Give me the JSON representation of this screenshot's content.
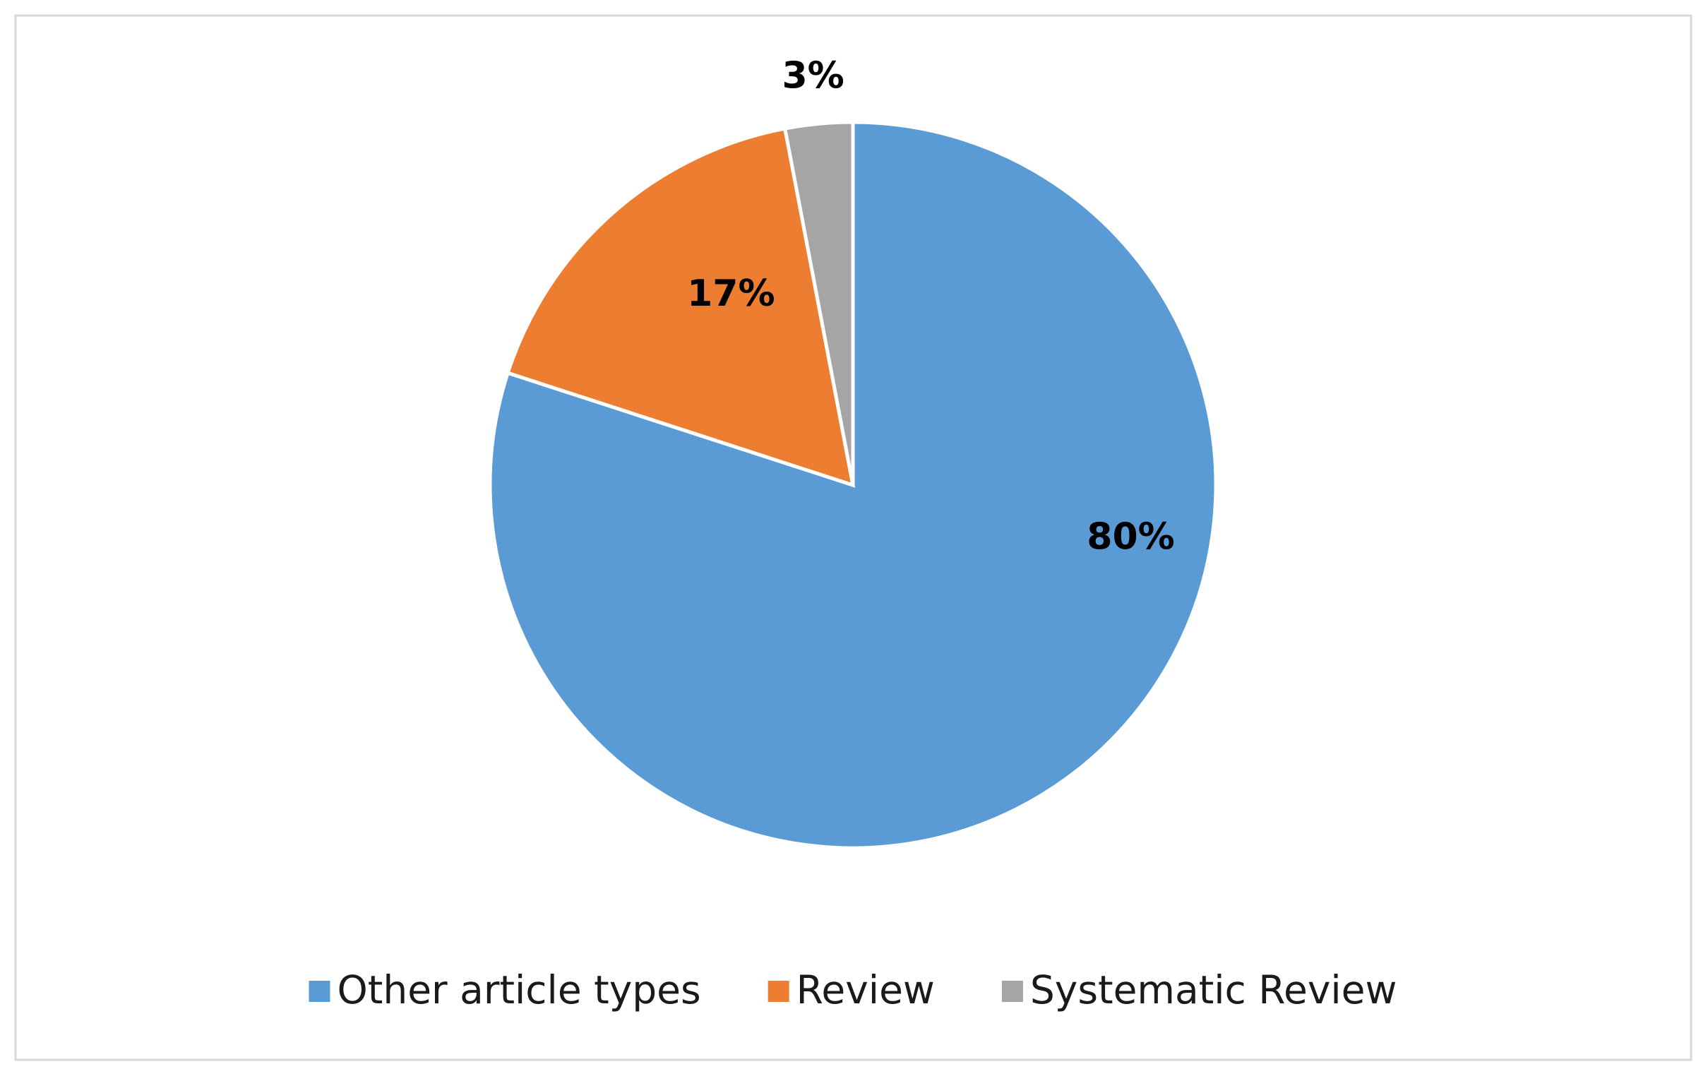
{
  "chart_data": {
    "type": "pie",
    "categories": [
      "Other article types",
      "Review",
      "Systematic Review"
    ],
    "values": [
      80,
      17,
      3
    ],
    "value_labels": [
      "80%",
      "17%",
      "3%"
    ],
    "colors": [
      "#5b9bd5",
      "#ed7d31",
      "#a5a5a5"
    ],
    "legend": "bottom"
  }
}
